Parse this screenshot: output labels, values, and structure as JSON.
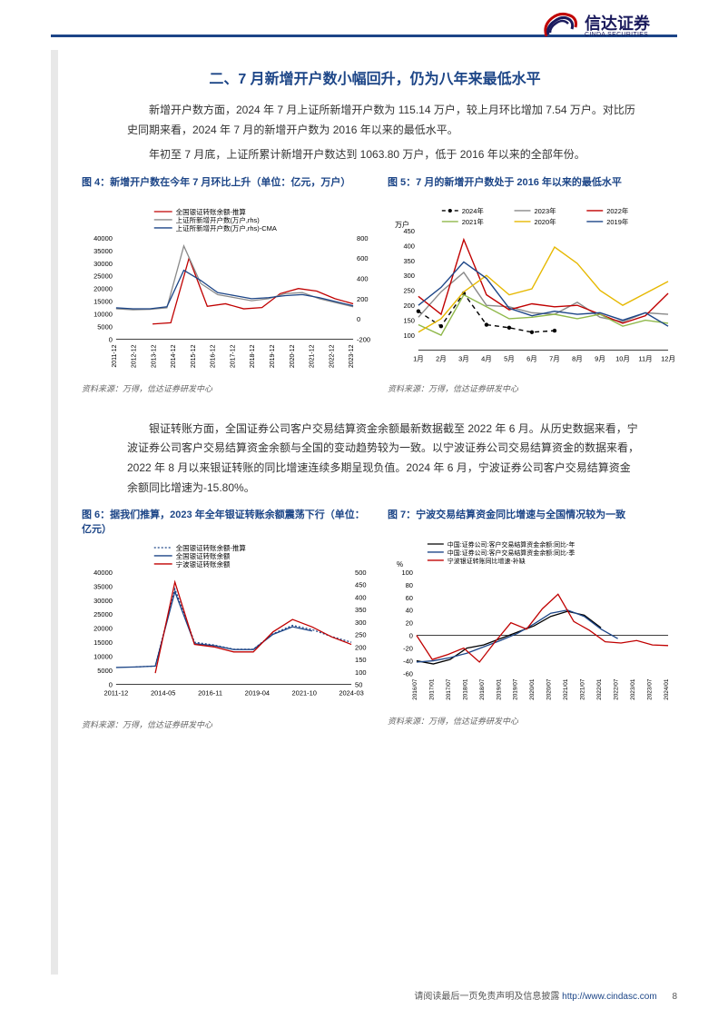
{
  "brand": {
    "cn": "信达证券",
    "en": "CINDA SECURITIES"
  },
  "section_title": "二、7 月新增开户数小幅回升，仍为八年来最低水平",
  "para1": "新增开户数方面，2024 年 7 月上证所新增开户数为 115.14 万户，较上月环比增加 7.54 万户。对比历史同期来看，2024 年 7 月的新增开户数为 2016 年以来的最低水平。",
  "para2": "年初至 7 月底，上证所累计新增开户数达到 1063.80 万户，低于 2016 年以来的全部年份。",
  "para3": "银证转账方面，全国证券公司客户交易结算资金余额最新数据截至 2022 年 6 月。从历史数据来看，宁波证券公司客户交易结算资金余额与全国的变动趋势较为一致。以宁波证券公司交易结算资金的数据来看，2022 年 8 月以来银证转账的同比增速连续多期呈现负值。2024 年 6 月，宁波证券公司客户交易结算资金余额同比增速为-15.80%。",
  "source_label": "资料来源：万得，信达证券研发中心",
  "footer_text": "请阅读最后一页免责声明及信息披露",
  "footer_url": "http://www.cindasc.com",
  "page_number": "8",
  "chart4": {
    "title": "图 4：新增开户数在今年 7 月环比上升（单位：亿元，万户）",
    "type": "line",
    "legend": [
      "全国银证转账余额-推算",
      "上证所新增开户数(万户,rhs)",
      "上证所新增开户数(万户,rhs)-CMA"
    ],
    "legend_colors": [
      "#c00000",
      "#8a8a8a",
      "#1c4587"
    ],
    "y_left": {
      "min": 0,
      "max": 40000,
      "step": 5000
    },
    "y_right": {
      "min": -200,
      "max": 800,
      "step": 200
    },
    "x_labels": [
      "2011-12",
      "2012-12",
      "2013-12",
      "2014-12",
      "2015-12",
      "2016-12",
      "2017-12",
      "2018-12",
      "2019-12",
      "2020-12",
      "2021-12",
      "2022-12",
      "2023-12"
    ],
    "series_red": [
      null,
      null,
      6000,
      6500,
      32000,
      13000,
      14000,
      12000,
      12500,
      18000,
      20000,
      19000,
      16000,
      14000
    ],
    "series_gray": [
      100,
      90,
      95,
      110,
      720,
      350,
      240,
      210,
      180,
      200,
      250,
      260,
      200,
      160,
      120
    ],
    "series_blue": [
      110,
      100,
      100,
      120,
      480,
      380,
      260,
      230,
      200,
      210,
      230,
      240,
      210,
      170,
      130
    ],
    "bg": "#ffffff",
    "axis_color": "#000000",
    "tick_fontsize": 8,
    "line_width": 1.3
  },
  "chart5": {
    "title": "图 5：7 月的新增开户数处于 2016 年以来的最低水平",
    "type": "line",
    "legend": [
      "2024年",
      "2023年",
      "2022年",
      "2021年",
      "2020年",
      "2019年"
    ],
    "legend_colors": [
      "#000000",
      "#8a8a8a",
      "#c00000",
      "#8fb84a",
      "#e6b800",
      "#1c4587"
    ],
    "legend_styles": [
      "dashed-dot",
      "solid",
      "solid",
      "solid",
      "solid",
      "solid"
    ],
    "y": {
      "min": 50,
      "max": 450,
      "ticks": [
        100,
        150,
        200,
        250,
        300,
        350,
        400,
        450
      ],
      "label": "万户"
    },
    "x_labels": [
      "1月",
      "2月",
      "3月",
      "4月",
      "5月",
      "6月",
      "7月",
      "8月",
      "9月",
      "10月",
      "11月",
      "12月"
    ],
    "series": {
      "2024": [
        180,
        130,
        240,
        135,
        125,
        110,
        115,
        null,
        null,
        null,
        null,
        null
      ],
      "2023": [
        160,
        245,
        310,
        200,
        195,
        175,
        170,
        210,
        160,
        145,
        175,
        170
      ],
      "2022": [
        230,
        170,
        420,
        235,
        185,
        205,
        195,
        200,
        170,
        140,
        165,
        240
      ],
      "2021": [
        135,
        100,
        235,
        195,
        155,
        160,
        170,
        155,
        170,
        130,
        150,
        140
      ],
      "2020": [
        110,
        155,
        245,
        300,
        235,
        255,
        395,
        340,
        250,
        200,
        240,
        280
      ],
      "2019": [
        200,
        260,
        345,
        290,
        190,
        165,
        180,
        170,
        175,
        150,
        175,
        130
      ]
    },
    "bg": "#ffffff",
    "axis_color": "#000000",
    "tick_fontsize": 8,
    "line_width": 1.4
  },
  "chart6": {
    "title": "图 6：据我们推算，2023 年全年银证转账余额震荡下行（单位：亿元）",
    "type": "line",
    "legend": [
      "全国银证转账余额-推算",
      "全国银证转账余额",
      "宁波银证转账余额"
    ],
    "legend_colors": [
      "#1c4587",
      "#1c4587",
      "#c00000"
    ],
    "legend_styles": [
      "dotted",
      "solid",
      "solid"
    ],
    "y_left": {
      "min": 0,
      "max": 40000,
      "step": 5000
    },
    "y_right": {
      "min": 50,
      "max": 500,
      "step": 50
    },
    "x_labels": [
      "2011-12",
      "2014-05",
      "2016-11",
      "2019-04",
      "2021-10",
      "2024-03"
    ],
    "series_blue_dot": [
      null,
      6200,
      6500,
      34000,
      15000,
      14000,
      12500,
      12500,
      18000,
      21000,
      19500,
      17000,
      15000
    ],
    "series_blue": [
      6000,
      6200,
      6500,
      33000,
      14500,
      13800,
      12400,
      12400,
      17800,
      20500,
      19000,
      null,
      null
    ],
    "series_red": [
      null,
      null,
      95,
      460,
      210,
      200,
      180,
      180,
      260,
      310,
      280,
      240,
      210
    ],
    "bg": "#ffffff",
    "axis_color": "#000000",
    "tick_fontsize": 8,
    "line_width": 1.3
  },
  "chart7": {
    "title": "图 7：宁波交易结算资金同比增速与全国情况较为一致",
    "type": "line",
    "legend": [
      "中国:证券公司:客户交易结算资金余额:同比-年",
      "中国:证券公司:客户交易结算资金余额:同比-季",
      "宁波银证转账同比增速-补缺"
    ],
    "legend_colors": [
      "#000000",
      "#1c4587",
      "#c00000"
    ],
    "y": {
      "min": -60,
      "max": 100,
      "step": 20,
      "label": "%"
    },
    "x_labels": [
      "2016/07",
      "2017/01",
      "2017/07",
      "2018/01",
      "2018/07",
      "2019/01",
      "2019/07",
      "2020/01",
      "2020/07",
      "2021/01",
      "2021/07",
      "2022/01",
      "2022/07",
      "2023/01",
      "2023/07",
      "2024/01"
    ],
    "series_black": [
      -40,
      -45,
      -38,
      -20,
      -15,
      -5,
      5,
      15,
      30,
      38,
      32,
      12,
      null,
      null,
      null,
      null
    ],
    "series_blue": [
      -42,
      -40,
      -35,
      -28,
      -18,
      -8,
      3,
      18,
      35,
      40,
      30,
      10,
      -5,
      null,
      null,
      null
    ],
    "series_red": [
      0,
      -38,
      -30,
      -20,
      -42,
      -10,
      20,
      10,
      42,
      65,
      22,
      8,
      -10,
      -12,
      -8,
      -15,
      -16
    ],
    "bg": "#ffffff",
    "axis_color": "#000000",
    "tick_fontsize": 8,
    "line_width": 1.3
  },
  "colors": {
    "brand_blue": "#1c4587",
    "text": "#333333",
    "stripe": "#e8e8e8"
  }
}
